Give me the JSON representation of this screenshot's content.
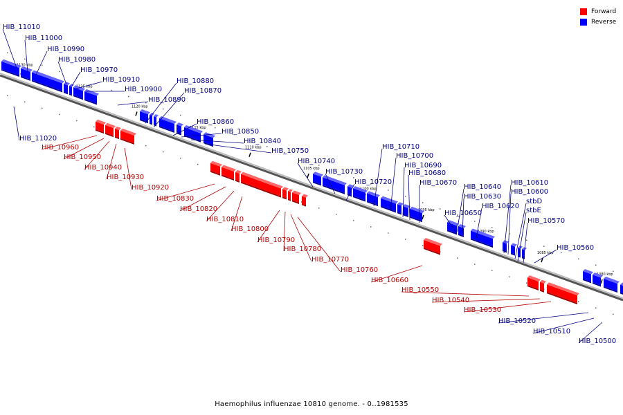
{
  "footer_caption": "Haemophilus influenzae 10810 genome. - 0..1981535",
  "legend": [
    {
      "label": "Forward",
      "color": "#ff0000"
    },
    {
      "label": "Reverse",
      "color": "#0000ff"
    }
  ],
  "colors": {
    "forward": "#ff0000",
    "reverse": "#0000ff",
    "forward_label": "#b30000",
    "reverse_label": "#000080"
  },
  "scale_ticks": [
    "1130 kbp",
    "1125 kbp",
    "1120 kbp",
    "1115 kbp",
    "1110 kbp",
    "1105 kbp",
    "1100 kbp",
    "1095 kbp",
    "1090 kbp",
    "1085 kbp",
    "1080 kbp"
  ],
  "reverse_genes": [
    "HIB_11010",
    "HIB_11000",
    "HIB_10990",
    "HIB_10980",
    "HIB_10970",
    "HIB_10910",
    "HIB_10900",
    "HIB_10890",
    "HIB_10880",
    "HIB_10870",
    "HIB_10860",
    "HIB_10850",
    "HIB_10840",
    "HIB_10750",
    "HIB_10740",
    "HIB_10730",
    "HIB_10720",
    "HIB_10710",
    "HIB_10700",
    "HIB_10690",
    "HIB_10680",
    "HIB_10670",
    "HIB_10640",
    "HIB_10630",
    "HIB_10620",
    "HIB_10650",
    "HIB_10610",
    "HIB_10600",
    "stbD",
    "stbE",
    "HIB_10570",
    "HIB_10560",
    "HIB_11020",
    "HIB_10520",
    "HIB_10510",
    "HIB_10500"
  ],
  "forward_genes": [
    "HIB_10960",
    "HIB_10950",
    "HIB_10940",
    "HIB_10930",
    "HIB_10920",
    "HIB_10830",
    "HIB_10820",
    "HIB_10810",
    "HIB_10800",
    "HIB_10790",
    "HIB_10780",
    "HIB_10770",
    "HIB_10760",
    "HIB_10660",
    "HIB_10550",
    "HIB_10540",
    "HIB_10530"
  ]
}
